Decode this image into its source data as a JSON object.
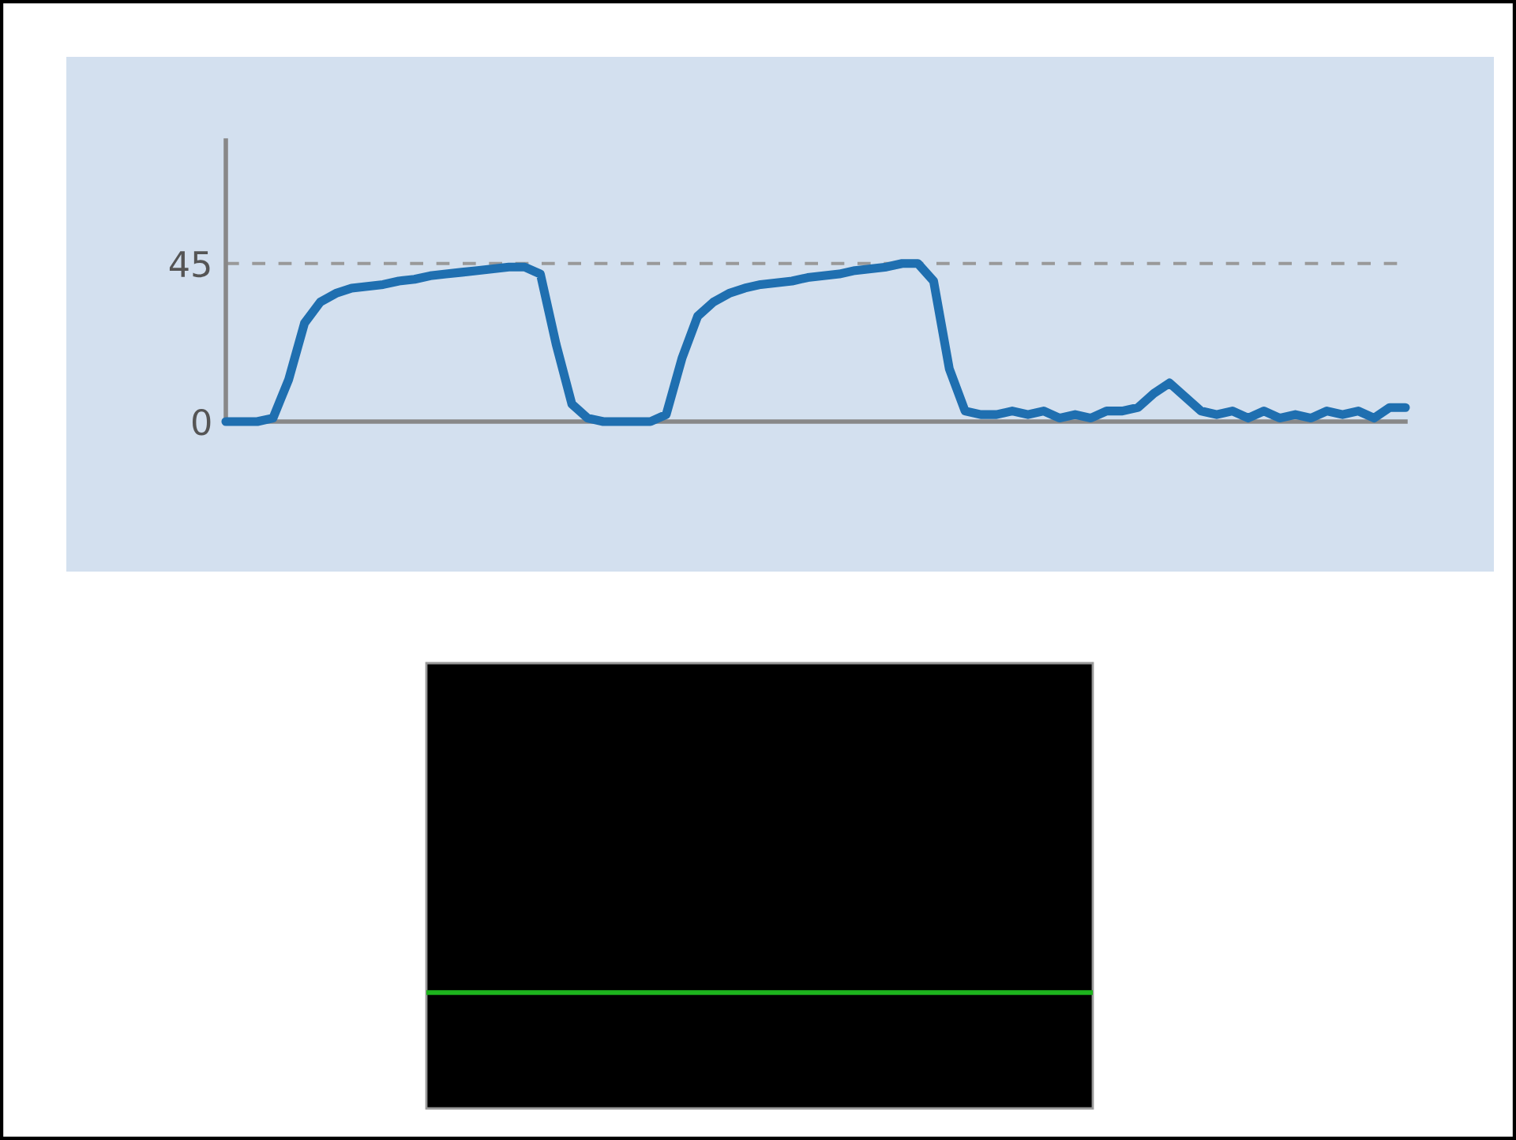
{
  "chart_data": [
    {
      "type": "line",
      "categories": [
        null,
        null,
        null,
        null,
        null,
        null,
        null,
        null,
        null,
        null,
        null,
        null,
        null,
        null,
        null,
        null,
        null,
        null,
        null,
        null,
        null,
        null,
        null,
        null,
        null,
        null,
        null,
        null,
        null,
        null,
        null,
        null,
        null,
        null,
        null,
        null,
        null,
        null,
        null,
        null,
        null,
        null,
        null,
        null,
        null,
        null,
        null,
        null,
        null,
        null,
        null,
        null,
        null,
        null,
        null,
        null,
        null,
        null,
        null,
        null,
        null,
        null,
        null,
        null,
        null,
        null,
        null,
        null,
        null,
        null,
        null,
        null,
        null,
        null,
        null,
        null
      ],
      "series": [
        {
          "color": "#1f6fb0",
          "values": [
            0,
            0,
            0,
            1,
            12,
            28,
            34,
            36.5,
            38,
            38.5,
            39,
            40,
            40.5,
            41.5,
            42,
            42.5,
            43,
            43.5,
            44,
            44,
            42,
            22,
            5,
            1,
            0,
            0,
            0,
            0,
            2,
            18,
            30,
            34,
            36.5,
            38,
            39,
            39.5,
            40,
            41,
            41.5,
            42,
            43,
            43.5,
            44,
            45,
            45,
            40,
            15,
            3,
            2,
            2,
            3,
            2,
            3,
            1,
            2,
            1,
            3,
            3,
            4,
            8,
            11,
            7,
            3,
            2,
            3,
            1,
            3,
            1,
            2,
            1,
            3,
            2,
            3,
            1,
            4,
            4
          ]
        }
      ],
      "ylim": [
        0,
        80
      ],
      "yticks": [
        0,
        45
      ],
      "ref_lines": [
        {
          "axis": "y",
          "value": 45,
          "color": "#999999",
          "line_style": "dashed"
        }
      ],
      "grid": false
    }
  ]
}
